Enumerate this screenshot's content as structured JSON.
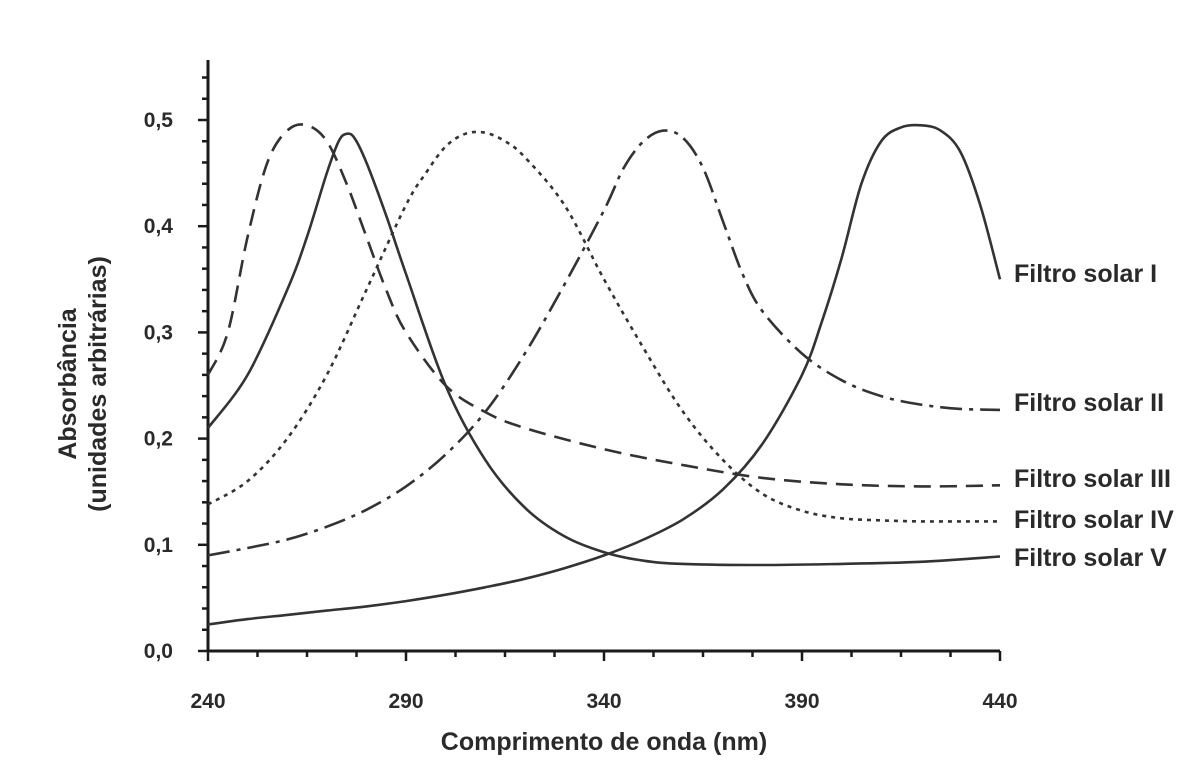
{
  "chart_data": {
    "type": "line",
    "xlabel": "Comprimento de onda (nm)",
    "ylabel_line1": "Absorbância",
    "ylabel_line2": "(unidades arbitrárias)",
    "xlim": [
      240,
      440
    ],
    "ylim": [
      0,
      0.55
    ],
    "xticks": [
      240,
      290,
      340,
      390,
      440
    ],
    "xtick_labels": [
      "240",
      "290",
      "340",
      "390",
      "440"
    ],
    "yticks": [
      0.0,
      0.1,
      0.2,
      0.3,
      0.4,
      0.5
    ],
    "ytick_labels": [
      "0,0",
      "0,1",
      "0,2",
      "0,3",
      "0,4",
      "0,5"
    ],
    "grid": false,
    "legend": "labels at right end of each curve",
    "series": [
      {
        "name": "Filtro solar I",
        "line_style": "solid",
        "x": [
          240,
          250,
          260,
          270,
          280,
          290,
          300,
          310,
          320,
          330,
          340,
          350,
          360,
          370,
          380,
          390,
          395,
          400,
          405,
          410,
          415,
          420,
          425,
          430,
          435,
          440
        ],
        "y": [
          0.025,
          0.03,
          0.034,
          0.038,
          0.042,
          0.047,
          0.053,
          0.06,
          0.068,
          0.078,
          0.09,
          0.105,
          0.124,
          0.152,
          0.195,
          0.26,
          0.31,
          0.37,
          0.44,
          0.48,
          0.493,
          0.495,
          0.49,
          0.47,
          0.42,
          0.35
        ]
      },
      {
        "name": "Filtro solar II",
        "line_style": "dash-dot",
        "x": [
          240,
          250,
          260,
          270,
          280,
          290,
          300,
          310,
          320,
          330,
          340,
          345,
          350,
          355,
          360,
          365,
          370,
          375,
          380,
          390,
          400,
          410,
          420,
          430,
          440
        ],
        "y": [
          0.09,
          0.097,
          0.105,
          0.117,
          0.133,
          0.155,
          0.185,
          0.225,
          0.28,
          0.345,
          0.415,
          0.455,
          0.48,
          0.49,
          0.483,
          0.455,
          0.405,
          0.355,
          0.32,
          0.28,
          0.255,
          0.24,
          0.232,
          0.228,
          0.227
        ]
      },
      {
        "name": "Filtro solar III",
        "line_style": "dashed",
        "x": [
          240,
          245,
          250,
          255,
          260,
          265,
          270,
          275,
          280,
          285,
          290,
          300,
          310,
          320,
          340,
          360,
          380,
          400,
          420,
          440
        ],
        "y": [
          0.26,
          0.3,
          0.39,
          0.46,
          0.49,
          0.495,
          0.48,
          0.44,
          0.39,
          0.34,
          0.3,
          0.25,
          0.225,
          0.21,
          0.19,
          0.175,
          0.163,
          0.157,
          0.155,
          0.156
        ]
      },
      {
        "name": "Filtro solar IV",
        "line_style": "dotted",
        "x": [
          240,
          250,
          260,
          270,
          280,
          290,
          295,
          300,
          305,
          310,
          315,
          320,
          330,
          340,
          350,
          360,
          370,
          380,
          390,
          400,
          410,
          420,
          430,
          440
        ],
        "y": [
          0.138,
          0.16,
          0.2,
          0.26,
          0.34,
          0.42,
          0.45,
          0.475,
          0.487,
          0.488,
          0.48,
          0.465,
          0.42,
          0.35,
          0.285,
          0.225,
          0.18,
          0.148,
          0.132,
          0.125,
          0.123,
          0.122,
          0.122,
          0.122
        ]
      },
      {
        "name": "Filtro solar V",
        "line_style": "solid",
        "x": [
          240,
          250,
          260,
          265,
          270,
          273,
          275,
          277,
          280,
          285,
          290,
          300,
          310,
          320,
          330,
          340,
          350,
          360,
          380,
          400,
          420,
          440
        ],
        "y": [
          0.21,
          0.26,
          0.34,
          0.39,
          0.45,
          0.48,
          0.487,
          0.483,
          0.46,
          0.41,
          0.355,
          0.25,
          0.18,
          0.135,
          0.108,
          0.093,
          0.085,
          0.082,
          0.081,
          0.082,
          0.084,
          0.089
        ]
      }
    ]
  }
}
